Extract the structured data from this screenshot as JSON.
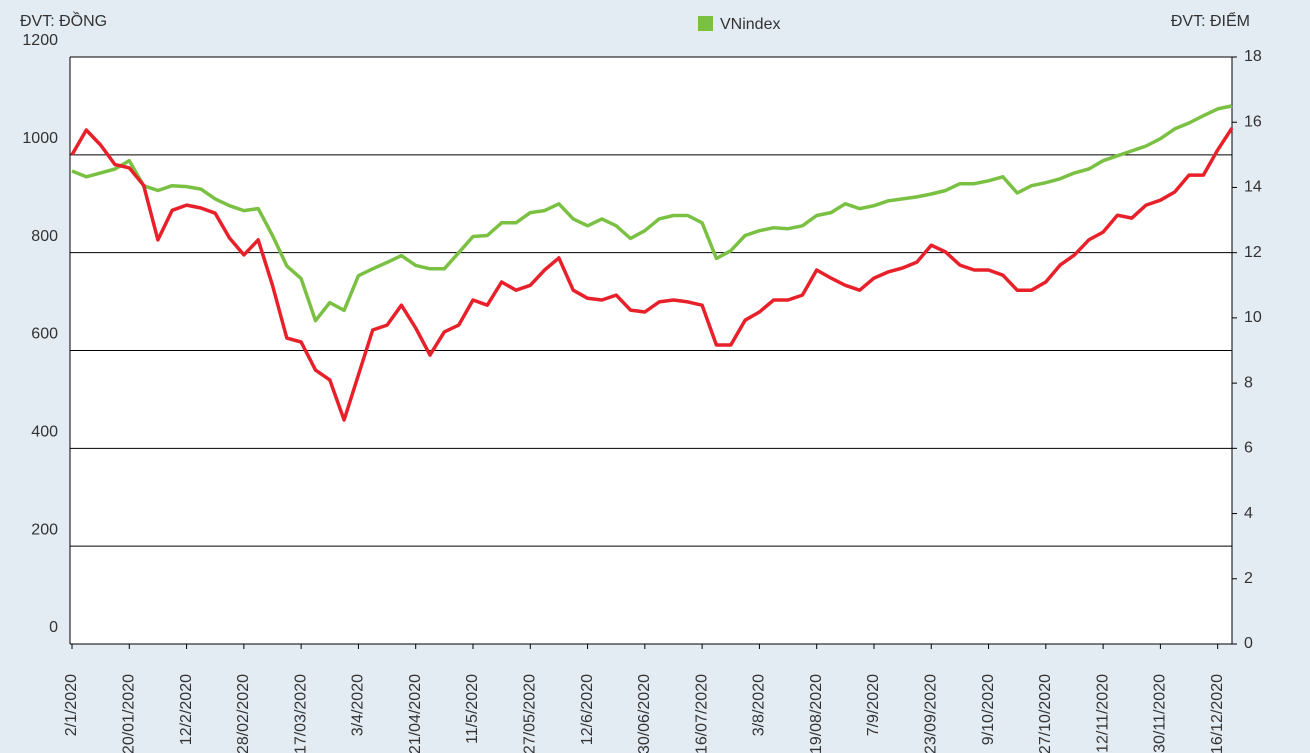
{
  "chart_data": {
    "type": "line",
    "y_label": "ĐVT: ĐỒNG",
    "y2_label": "ĐVT: ĐIỂM",
    "categories": [
      "2/1/2020",
      null,
      null,
      null,
      "20/01/2020",
      null,
      null,
      null,
      "12/2/2020",
      null,
      null,
      null,
      "28/02/2020",
      null,
      null,
      null,
      "17/03/2020",
      null,
      null,
      null,
      "3/4/2020",
      null,
      null,
      null,
      "21/04/2020",
      null,
      null,
      null,
      "11/5/2020",
      null,
      null,
      null,
      "27/05/2020",
      null,
      null,
      null,
      "12/6/2020",
      null,
      null,
      null,
      "30/06/2020",
      null,
      null,
      null,
      "16/07/2020",
      null,
      null,
      null,
      "3/8/2020",
      null,
      null,
      null,
      "19/08/2020",
      null,
      null,
      null,
      "7/9/2020",
      null,
      null,
      null,
      "23/09/2020",
      null,
      null,
      null,
      "9/10/2020",
      null,
      null,
      null,
      "27/10/2020",
      null,
      null,
      null,
      "12/11/2020",
      null,
      null,
      null,
      "30/11/2020",
      null,
      null,
      null,
      "16/12/2020",
      null
    ],
    "series": [
      {
        "name": "VNindex",
        "color": "#7ac143",
        "values": [
          967,
          955,
          963,
          971,
          988,
          937,
          927,
          937,
          935,
          930,
          910,
          896,
          886,
          890,
          835,
          773,
          747,
          661,
          698,
          682,
          753,
          767,
          780,
          794,
          774,
          767,
          767,
          800,
          833,
          835,
          861,
          861,
          882,
          886,
          900,
          869,
          855,
          869,
          855,
          829,
          845,
          869,
          876,
          876,
          861,
          788,
          804,
          835,
          845,
          851,
          849,
          855,
          876,
          882,
          900,
          890,
          896,
          906,
          910,
          914,
          920,
          927,
          941,
          941,
          947,
          955,
          922,
          937,
          943,
          951,
          963,
          971,
          988,
          998,
          1008,
          1018,
          1033,
          1053,
          1065,
          1080,
          1094,
          1100
        ]
      },
      {
        "color": "#e8202a",
        "axis": "y2",
        "values": [
          15.0,
          15.76,
          15.3,
          14.7,
          14.6,
          14.07,
          12.39,
          13.3,
          13.46,
          13.37,
          13.21,
          12.45,
          11.93,
          12.39,
          11.0,
          9.38,
          9.26,
          8.4,
          8.1,
          6.87,
          8.25,
          9.63,
          9.78,
          10.39,
          9.69,
          8.86,
          9.57,
          9.78,
          10.55,
          10.39,
          11.1,
          10.85,
          11.0,
          11.47,
          11.84,
          10.85,
          10.6,
          10.55,
          10.7,
          10.24,
          10.18,
          10.49,
          10.55,
          10.49,
          10.39,
          9.17,
          9.17,
          9.93,
          10.18,
          10.55,
          10.55,
          10.7,
          11.47,
          11.22,
          11.0,
          10.85,
          11.22,
          11.41,
          11.53,
          11.71,
          12.23,
          12.02,
          11.62,
          11.47,
          11.47,
          11.31,
          10.85,
          10.85,
          11.1,
          11.62,
          11.93,
          12.39,
          12.63,
          13.15,
          13.06,
          13.46,
          13.61,
          13.86,
          14.38,
          14.38,
          15.15,
          15.82
        ]
      }
    ],
    "ylim": [
      0,
      1200
    ],
    "yticks": [
      0,
      200,
      400,
      600,
      800,
      1000,
      1200
    ],
    "y2lim": [
      0,
      18
    ],
    "y2ticks": [
      0,
      2,
      4,
      6,
      8,
      10,
      12,
      14,
      16,
      18
    ],
    "grid": true
  }
}
